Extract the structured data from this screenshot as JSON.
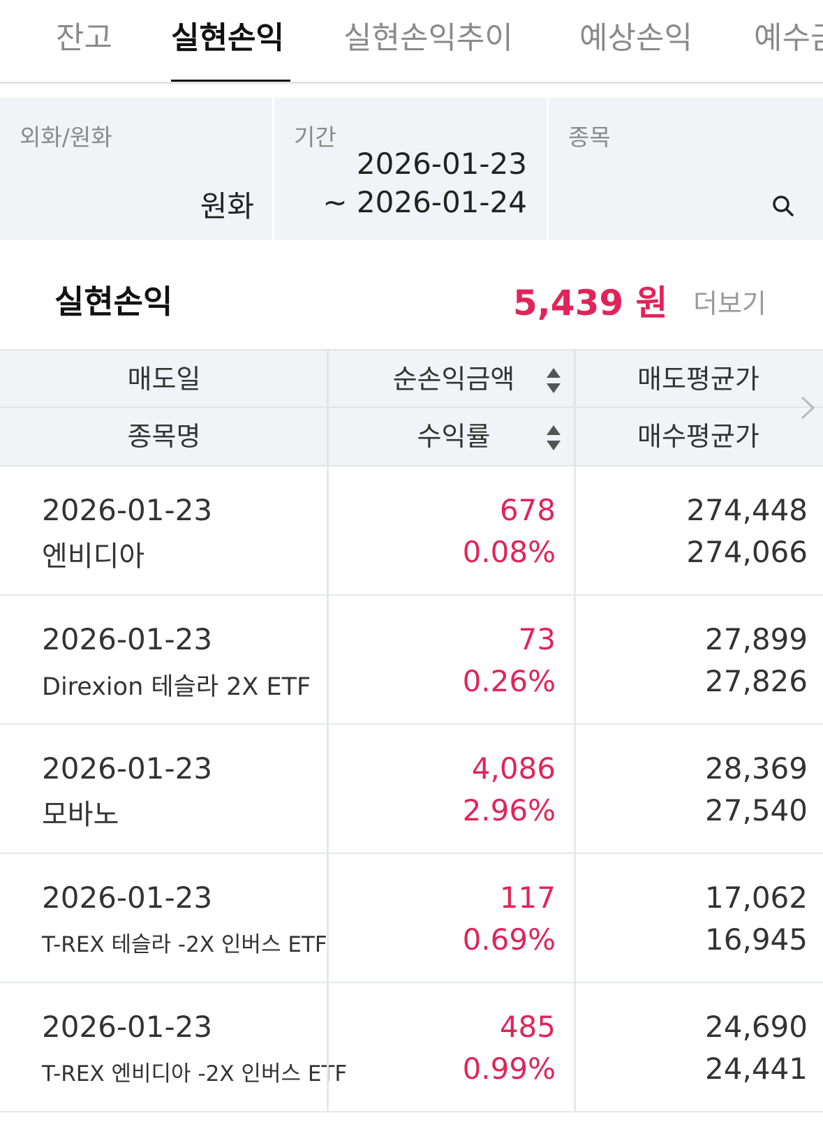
{
  "tabs": [
    {
      "label": "잔고",
      "active": false
    },
    {
      "label": "실현손익",
      "active": true
    },
    {
      "label": "실현손익추이",
      "active": false
    },
    {
      "label": "예상손익",
      "active": false
    },
    {
      "label": "예수금",
      "active": false
    }
  ],
  "filters": {
    "currency": {
      "label": "외화/원화",
      "value": "원화"
    },
    "period": {
      "label": "기간",
      "from": "2026-01-23",
      "to": "~ 2026-01-24"
    },
    "stock": {
      "label": "종목",
      "icon": "search-icon"
    }
  },
  "summary": {
    "title": "실현손익",
    "value": "5,439 원",
    "more": "더보기"
  },
  "table": {
    "headers": {
      "row1": [
        "매도일",
        "순손익금액",
        "매도평균가"
      ],
      "row2": [
        "종목명",
        "수익률",
        "매수평균가"
      ]
    },
    "rows": [
      {
        "date": "2026-01-23",
        "name": "엔비디아",
        "pl": "678",
        "rate": "0.08%",
        "sell": "274,448",
        "buy": "274,066"
      },
      {
        "date": "2026-01-23",
        "name": "Direxion 테슬라 2X ETF",
        "pl": "73",
        "rate": "0.26%",
        "sell": "27,899",
        "buy": "27,826"
      },
      {
        "date": "2026-01-23",
        "name": "모바노",
        "pl": "4,086",
        "rate": "2.96%",
        "sell": "28,369",
        "buy": "27,540"
      },
      {
        "date": "2026-01-23",
        "name": "T-REX 테슬라 -2X 인버스 ETF",
        "pl": "117",
        "rate": "0.69%",
        "sell": "17,062",
        "buy": "16,945"
      },
      {
        "date": "2026-01-23",
        "name": "T-REX 엔비디아 -2X 인버스 ETF",
        "pl": "485",
        "rate": "0.99%",
        "sell": "24,690",
        "buy": "24,441"
      }
    ]
  },
  "colors": {
    "accent": "#e0245a",
    "panel": "#f1f3f6"
  }
}
